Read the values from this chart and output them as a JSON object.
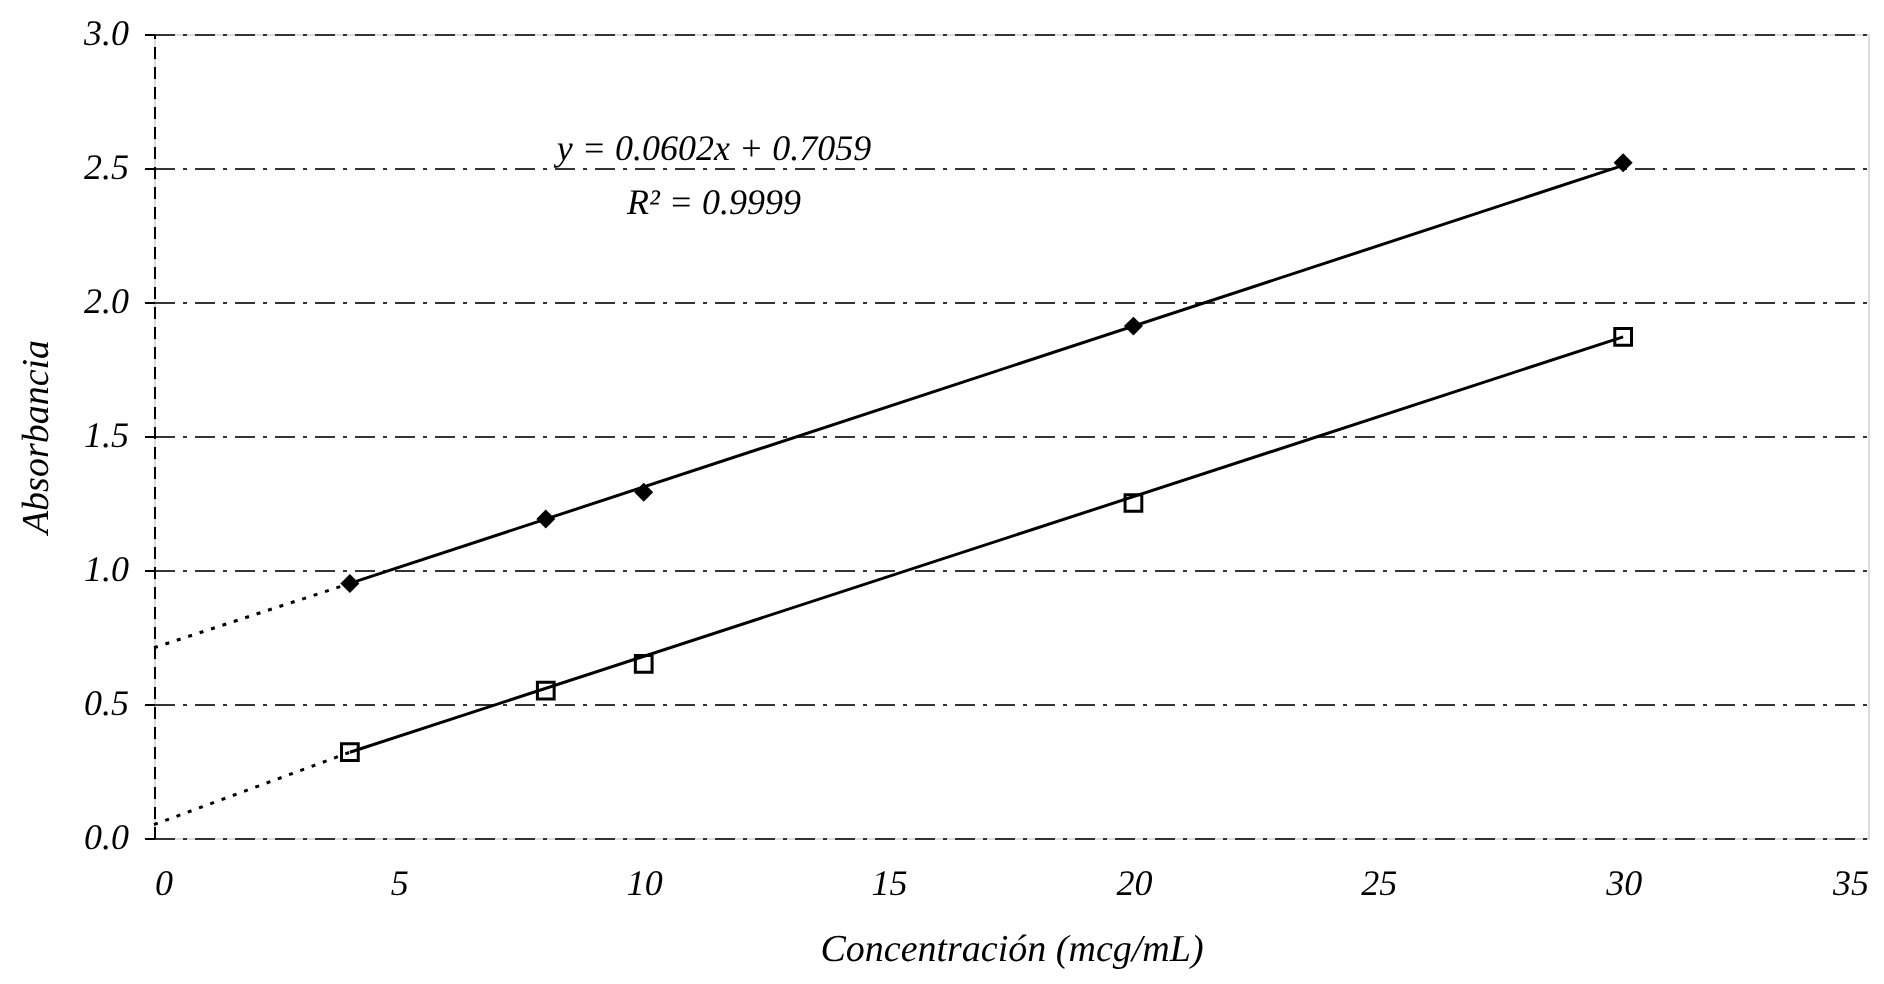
{
  "chart_data": {
    "type": "scatter",
    "xlabel": "Concentración (mcg/mL)",
    "ylabel": "Absorbancia",
    "xlim": [
      0,
      35
    ],
    "xticks": [
      0,
      5,
      10,
      15,
      20,
      25,
      30,
      35
    ],
    "ylim": [
      0,
      3
    ],
    "yticks": [
      {
        "value": 0,
        "label": "0.0"
      },
      {
        "value": 0.5,
        "label": "0.5"
      },
      {
        "value": 1,
        "label": "1.0"
      },
      {
        "value": 1.5,
        "label": "1.5"
      },
      {
        "value": 2,
        "label": "2.0"
      },
      {
        "value": 2.5,
        "label": "2.5"
      },
      {
        "value": 3,
        "label": "3.0"
      }
    ],
    "grid": "y",
    "annotations": [
      "y = 0.0602x + 0.7059",
      "R² = 0.9999"
    ],
    "series": [
      {
        "color": "#000000",
        "marker": "diamond",
        "x": [
          4,
          8,
          10,
          20,
          30
        ],
        "values": [
          0.95,
          1.19,
          1.29,
          1.91,
          2.52
        ]
      },
      {
        "color": "#000000",
        "marker": "square",
        "x": [
          4,
          8,
          10,
          20,
          30
        ],
        "values": [
          0.32,
          0.55,
          0.65,
          1.25,
          1.87
        ]
      },
      {
        "type": "line",
        "color": "#000000",
        "line_style": "solid",
        "x": [
          4,
          30
        ],
        "values": [
          0.95,
          2.51
        ]
      },
      {
        "type": "line",
        "color": "#000000",
        "line_style": "dotted",
        "x": [
          0,
          4
        ],
        "values": [
          0.71,
          0.95
        ]
      },
      {
        "type": "line",
        "color": "#000000",
        "line_style": "solid",
        "x": [
          4,
          30
        ],
        "values": [
          0.32,
          1.87
        ]
      },
      {
        "type": "line",
        "color": "#000000",
        "line_style": "dotted",
        "x": [
          0,
          4
        ],
        "values": [
          0.05,
          0.32
        ]
      }
    ]
  }
}
